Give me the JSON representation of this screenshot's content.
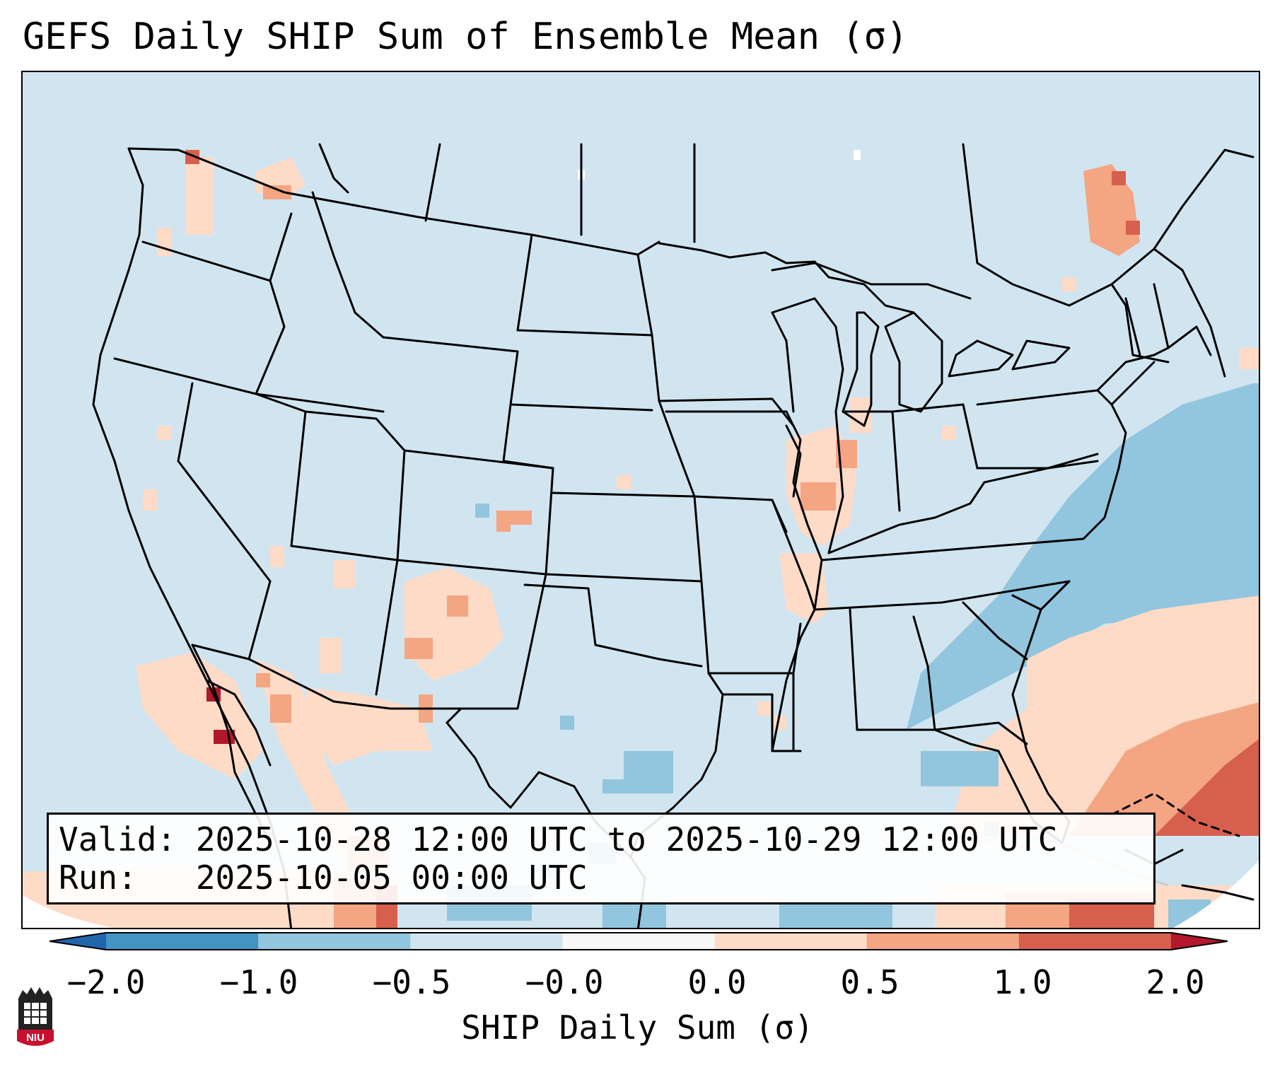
{
  "title": "GEFS Daily SHIP Sum of Ensemble Mean (σ)",
  "info": {
    "valid_line": "Valid: 2025-10-28 12:00 UTC to 2025-10-29 12:00 UTC",
    "run_line": "Run:   2025-10-05 00:00 UTC"
  },
  "colorbar": {
    "label": "SHIP Daily Sum (σ)",
    "ticks": [
      "−2.0",
      "−1.0",
      "−0.5",
      "−0.0",
      "0.0",
      "0.5",
      "1.0",
      "2.0"
    ],
    "colors": [
      "#4393c3",
      "#92c5de",
      "#d1e5f0",
      "#f7f7f7",
      "#fddbc7",
      "#f4a582",
      "#d6604d"
    ],
    "extend_low_color": "#2166ac",
    "extend_high_color": "#b2182b"
  },
  "logo": {
    "text": "NIU",
    "color": "#c8102e"
  },
  "map": {
    "background_color": "#d1e5f0",
    "region": "Contiguous United States, northern Mexico, western Atlantic"
  }
}
